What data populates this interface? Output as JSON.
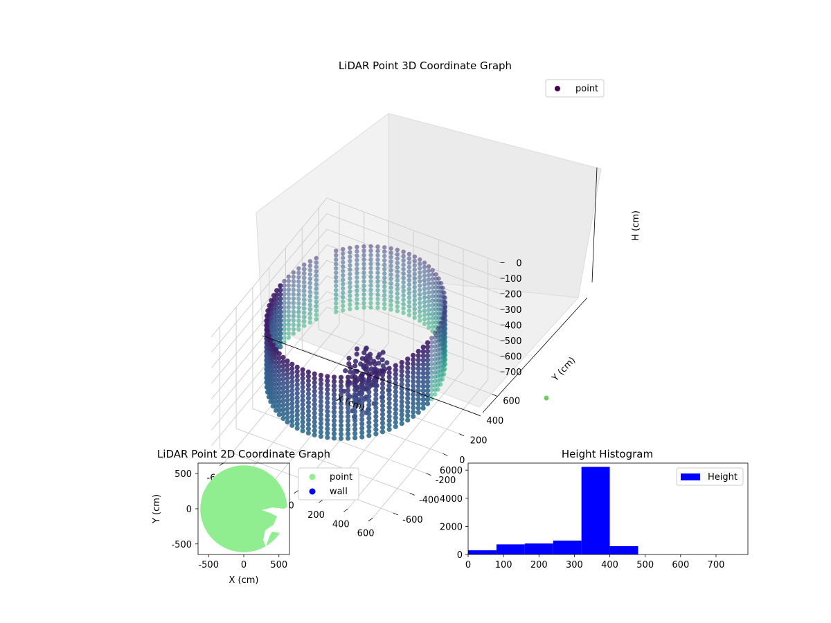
{
  "chart_data": [
    {
      "type": "scatter",
      "title": "LiDAR Point 3D Coordinate Graph",
      "xlabel": "X (cm)",
      "ylabel": "Y (cm)",
      "zlabel": "H (cm)",
      "xlim": [
        -700,
        700
      ],
      "ylim": [
        -700,
        700
      ],
      "zlim": [
        0,
        780
      ],
      "z_inverted": true,
      "x_ticks": [
        "-600",
        "-400",
        "-200",
        "0",
        "200",
        "400",
        "600"
      ],
      "y_ticks": [
        "-600",
        "-400",
        "-200",
        "0",
        "200",
        "400",
        "600"
      ],
      "z_ticks": [
        "0",
        "100",
        "200",
        "300",
        "400",
        "500",
        "600",
        "700"
      ],
      "legend": {
        "position": "top-right",
        "entries": [
          {
            "label": "point",
            "color": "#440154"
          }
        ]
      },
      "colormap": "viridis",
      "shape": {
        "kind": "cylindrical-wall",
        "radius_cm": 600,
        "height_range_cm": [
          60,
          470
        ],
        "sweep_deg": [
          -210,
          140
        ],
        "inner_object": {
          "x_range": [
            150,
            350
          ],
          "y_range": [
            -400,
            -100
          ],
          "z_range": [
            100,
            450
          ]
        }
      }
    },
    {
      "type": "scatter",
      "title": "LiDAR Point 2D Coordinate Graph",
      "xlabel": "X (cm)",
      "ylabel": "Y (cm)",
      "xlim": [
        -650,
        650
      ],
      "ylim": [
        -650,
        650
      ],
      "x_ticks": [
        "-500",
        "0",
        "500"
      ],
      "y_ticks": [
        "500",
        "0",
        "-500"
      ],
      "legend": {
        "position": "outside-right",
        "entries": [
          {
            "label": "point",
            "color": "#90ee90"
          },
          {
            "label": "wall",
            "color": "#0000ff"
          }
        ]
      },
      "shape": {
        "kind": "filled-disc",
        "radius_cm": 600
      }
    },
    {
      "type": "bar",
      "title": "Height Histogram",
      "xlim": [
        0,
        790
      ],
      "ylim": [
        0,
        6500
      ],
      "x_ticks": [
        "0",
        "100",
        "200",
        "300",
        "400",
        "500",
        "600",
        "700"
      ],
      "y_ticks": [
        "0",
        "2000",
        "4000",
        "6000"
      ],
      "legend": {
        "position": "top-right",
        "entries": [
          {
            "label": "Height",
            "color": "#0000ff"
          }
        ]
      },
      "bin_edges": [
        0,
        80,
        160,
        240,
        320,
        400,
        480,
        560,
        640,
        720,
        800
      ],
      "values": [
        300,
        720,
        780,
        990,
        6230,
        590,
        0,
        0,
        0,
        0
      ],
      "color": "#0000ff"
    }
  ]
}
